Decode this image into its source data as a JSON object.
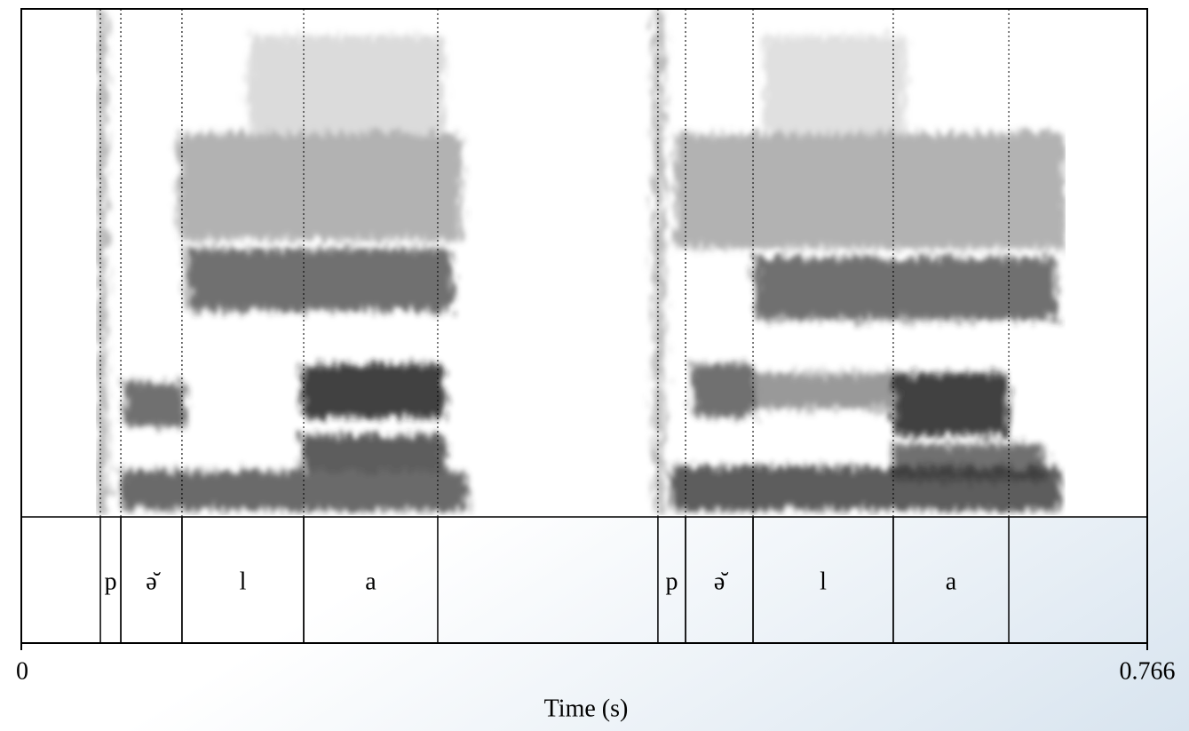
{
  "chart_data": {
    "type": "spectrogram",
    "x_label": "Time (s)",
    "xlim": [
      0,
      0.766
    ],
    "xticks": [
      0,
      0.766
    ],
    "intervals": [
      {
        "label": "p",
        "start": 0.0538,
        "end": 0.0677
      },
      {
        "label": "ə̆",
        "start": 0.0677,
        "end": 0.1093
      },
      {
        "label": "l",
        "start": 0.1093,
        "end": 0.1921
      },
      {
        "label": "a",
        "start": 0.1921,
        "end": 0.2833
      },
      {
        "label": "p",
        "start": 0.4331,
        "end": 0.4519
      },
      {
        "label": "ə̆",
        "start": 0.4519,
        "end": 0.4978
      },
      {
        "label": "l",
        "start": 0.4978,
        "end": 0.5932
      },
      {
        "label": "a",
        "start": 0.5932,
        "end": 0.6718
      }
    ]
  }
}
